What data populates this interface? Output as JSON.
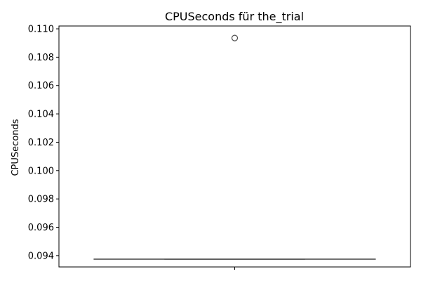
{
  "chart_data": {
    "type": "box",
    "title": "CPUSeconds für the_trial",
    "xlabel": "",
    "ylabel": "CPUSeconds",
    "ylim": [
      0.0932,
      0.1102
    ],
    "yticks": [
      "0.094",
      "0.096",
      "0.098",
      "0.100",
      "0.102",
      "0.104",
      "0.106",
      "0.108",
      "0.110"
    ],
    "ytick_values": [
      0.094,
      0.096,
      0.098,
      0.1,
      0.102,
      0.104,
      0.106,
      0.108,
      0.11
    ],
    "categories": [
      ""
    ],
    "boxes": [
      {
        "q1": 0.09375,
        "median": 0.09375,
        "q3": 0.09375,
        "whisker_low": 0.09375,
        "whisker_high": 0.09375,
        "outliers": [
          0.10935
        ]
      }
    ],
    "colors": {
      "line": "#4d4d4d",
      "axis": "#000000"
    },
    "grid": false
  }
}
